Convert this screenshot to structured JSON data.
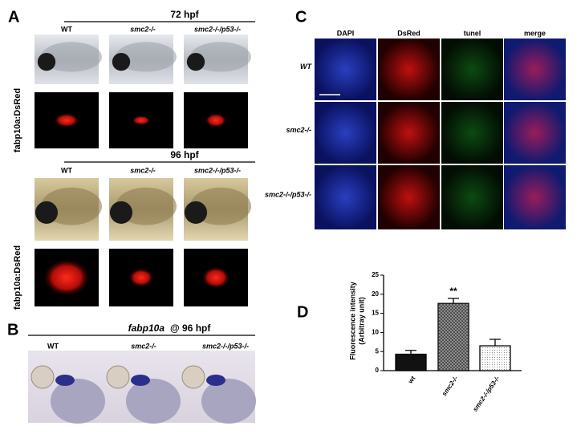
{
  "panel_a": {
    "label": "A",
    "side_label": "fabp10a:DsRed",
    "stages": [
      {
        "title": "72 hpf",
        "columns": [
          "WT",
          "smc2-/-",
          "smc2-/-/p53-/-"
        ]
      },
      {
        "title": "96 hpf",
        "columns": [
          "WT",
          "smc2-/-",
          "smc2-/-/p53-/-"
        ]
      }
    ]
  },
  "panel_b": {
    "label": "B",
    "gene": "fabp10a",
    "stage": "@ 96 hpf",
    "columns": [
      "WT",
      "smc2-/-",
      "smc2-/-/p53-/-"
    ]
  },
  "panel_c": {
    "label": "C",
    "columns": [
      "DAPI",
      "DsRed",
      "tunel",
      "merge"
    ],
    "rows": [
      "WT",
      "smc2-/-",
      "smc2-/-/p53-/-"
    ]
  },
  "chart_data": {
    "type": "bar",
    "label": "D",
    "ylabel": [
      "Fluorescence intensity",
      "(Arbitray unit)"
    ],
    "categories": [
      "wt",
      "smc2-/-",
      "smc2-/-/p53-/-"
    ],
    "values": [
      4.3,
      17.6,
      6.5
    ],
    "errors": [
      1.0,
      1.3,
      1.7
    ],
    "colors": [
      "#111111",
      "#9a9a9a",
      "#ffffff"
    ],
    "annotation": "**",
    "ylim": [
      0,
      25
    ],
    "yticks": [
      0,
      5,
      10,
      15,
      20,
      25
    ]
  }
}
